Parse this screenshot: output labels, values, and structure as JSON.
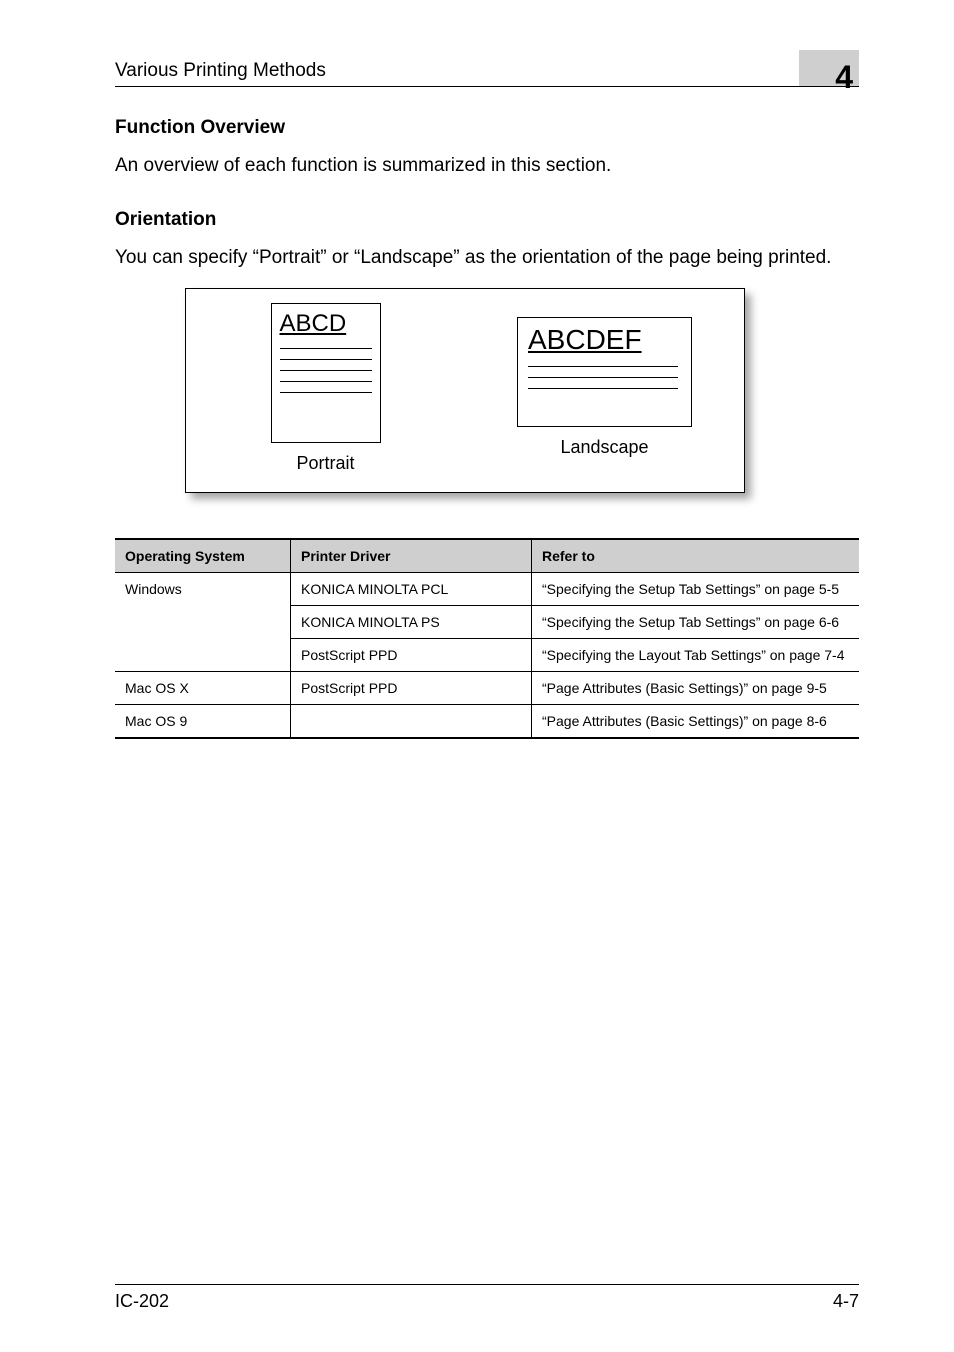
{
  "header": {
    "title": "Various Printing Methods",
    "chapter_number": "4"
  },
  "section1": {
    "heading": "Function Overview",
    "body": "An overview of each function is summarized in this section."
  },
  "section2": {
    "heading": "Orientation",
    "body": "You can specify “Portrait” or “Landscape” as the orientation of the page being printed."
  },
  "figure": {
    "portrait_label": "ABCD",
    "landscape_label": "ABCDEF",
    "portrait_caption": "Portrait",
    "landscape_caption": "Landscape"
  },
  "table": {
    "headers": {
      "os": "Operating System",
      "driver": "Printer Driver",
      "refer": "Refer to"
    },
    "rows": {
      "r0": {
        "os": "Windows",
        "driver": "KONICA MINOLTA PCL",
        "refer": "“Specifying the Setup Tab Settings” on page 5-5"
      },
      "r1": {
        "os": "",
        "driver": "KONICA MINOLTA PS",
        "refer": "“Specifying the Setup Tab Settings” on page 6-6"
      },
      "r2": {
        "os": "",
        "driver": "PostScript PPD",
        "refer": "“Specifying the Layout Tab Settings” on page 7-4"
      },
      "r3": {
        "os": "Mac OS X",
        "driver": "PostScript PPD",
        "refer": "“Page Attributes (Basic Settings)” on page 9-5"
      },
      "r4": {
        "os": "Mac OS 9",
        "driver": "",
        "refer": "“Page Attributes (Basic Settings)” on page 8-6"
      }
    }
  },
  "footer": {
    "left": "IC-202",
    "right": "4-7"
  },
  "colors": {
    "text": "#000000",
    "background": "#ffffff",
    "tab_bg": "#cfcfcf",
    "table_header_bg": "#cfcfcf",
    "rule": "#000000"
  }
}
